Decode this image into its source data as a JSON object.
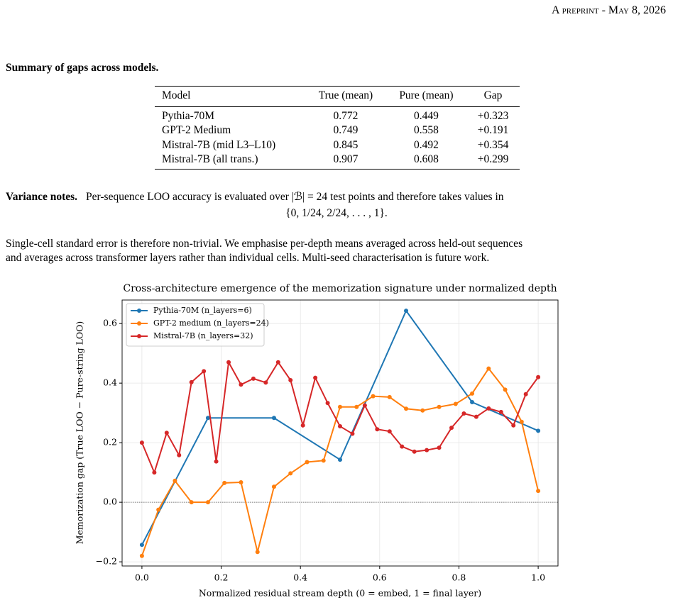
{
  "header": {
    "running_head": "A preprint - May 8, 2026"
  },
  "summary": {
    "heading": "Summary of gaps across models.",
    "table": {
      "columns": [
        "Model",
        "True (mean)",
        "Pure (mean)",
        "Gap"
      ],
      "rows": [
        [
          "Pythia-70M",
          0.772,
          0.449,
          "+0.323"
        ],
        [
          "GPT-2 Medium",
          0.749,
          0.558,
          "+0.191"
        ],
        [
          "Mistral-7B (mid L3–L10)",
          0.845,
          0.492,
          "+0.354"
        ],
        [
          "Mistral-7B (all trans.)",
          0.907,
          0.608,
          "+0.299"
        ]
      ]
    }
  },
  "variance": {
    "heading": "Variance notes.",
    "text": "Per-sequence LOO accuracy is evaluated over |ℬ| = 24 test points and therefore takes values in",
    "equation": "{0, 1/24, 2/24, . . . , 1}.",
    "paragraph_1": "Single-cell standard error is therefore non-trivial. We emphasise per-depth means averaged across held-out sequences",
    "paragraph_2": "and averages across transformer layers rather than individual cells. Multi-seed characterisation is future work."
  },
  "chart_data": {
    "type": "line",
    "title": "Cross-architecture emergence of the memorization signature under normalized depth",
    "xlabel": "Normalized residual stream depth  (0 = embed, 1 = final layer)",
    "ylabel": "Memorization gap  (True LOO − Pure-string LOO)",
    "xlim": [
      -0.05,
      1.05
    ],
    "ylim": [
      -0.214,
      0.679
    ],
    "xticks": [
      {
        "value": 0,
        "label": "0.0"
      },
      0.2,
      0.4,
      0.6,
      0.8,
      {
        "value": 1,
        "label": "1.0"
      }
    ],
    "yticks": [
      {
        "value": -0.2,
        "label": "−0.2"
      },
      {
        "value": 0,
        "label": "0.0"
      },
      0.2,
      0.4,
      0.6
    ],
    "grid": true,
    "zero_line": true,
    "legend": "upper left",
    "series": [
      {
        "name": "Pythia-70M (n_layers=6)",
        "color": "#1f77b4",
        "x": [
          0,
          0.1667,
          0.3333,
          0.5,
          0.6667,
          0.8333,
          1
        ],
        "values": [
          -0.143,
          0.283,
          0.283,
          0.143,
          0.643,
          0.336,
          0.24
        ]
      },
      {
        "name": "GPT-2 medium (n_layers=24)",
        "color": "#ff7f0e",
        "x": [
          0,
          0.0417,
          0.0833,
          0.125,
          0.1667,
          0.2083,
          0.25,
          0.2917,
          0.3333,
          0.375,
          0.4167,
          0.4583,
          0.5,
          0.5417,
          0.5833,
          0.625,
          0.6667,
          0.7083,
          0.75,
          0.7917,
          0.8333,
          0.875,
          0.9167,
          0.9583,
          1
        ],
        "values": [
          -0.18,
          -0.025,
          0.072,
          0.0,
          0.0,
          0.065,
          0.067,
          -0.167,
          0.052,
          0.097,
          0.135,
          0.14,
          0.32,
          0.32,
          0.356,
          0.353,
          0.314,
          0.308,
          0.32,
          0.33,
          0.365,
          0.449,
          0.378,
          0.27,
          0.038
        ]
      },
      {
        "name": "Mistral-7B (n_layers=32)",
        "color": "#d62728",
        "x": [
          0,
          0.0313,
          0.0625,
          0.0938,
          0.125,
          0.1563,
          0.1875,
          0.2188,
          0.25,
          0.2813,
          0.3125,
          0.3438,
          0.375,
          0.4063,
          0.4375,
          0.4688,
          0.5,
          0.5313,
          0.5625,
          0.5938,
          0.625,
          0.6563,
          0.6875,
          0.7188,
          0.75,
          0.7813,
          0.8125,
          0.8438,
          0.875,
          0.9063,
          0.9375,
          0.9688,
          1
        ],
        "values": [
          0.2,
          0.1,
          0.233,
          0.158,
          0.403,
          0.44,
          0.137,
          0.47,
          0.395,
          0.415,
          0.402,
          0.47,
          0.41,
          0.258,
          0.418,
          0.333,
          0.255,
          0.23,
          0.325,
          0.245,
          0.238,
          0.187,
          0.17,
          0.175,
          0.183,
          0.25,
          0.298,
          0.287,
          0.315,
          0.303,
          0.258,
          0.363,
          0.42
        ]
      }
    ]
  }
}
